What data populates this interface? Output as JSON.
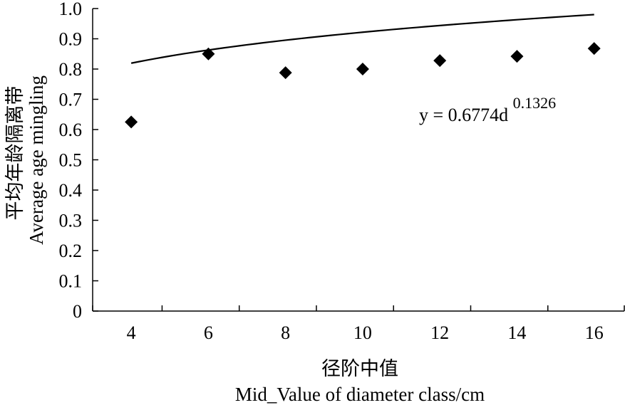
{
  "chart_data": {
    "type": "scatter",
    "x": [
      4.2,
      6.2,
      8.2,
      10.2,
      12.2,
      14.2,
      16.2
    ],
    "y": [
      0.625,
      0.85,
      0.788,
      0.8,
      0.828,
      0.842,
      0.868
    ],
    "xlim": [
      3.2,
      17
    ],
    "ylim": [
      0,
      1.0
    ],
    "x_ticks": [
      "4",
      "6",
      "8",
      "10",
      "12",
      "14",
      "16"
    ],
    "y_ticks": [
      "0",
      "0.1",
      "0.2",
      "0.3",
      "0.4",
      "0.5",
      "0.6",
      "0.7",
      "0.8",
      "0.9",
      "1.0"
    ],
    "xlabel_cn": "径阶中值",
    "xlabel_en": "Mid_Value of diameter class/cm",
    "ylabel_cn": "平均年龄隔离带",
    "ylabel_en": "Average age mingling",
    "trendline": {
      "type": "power",
      "a": 0.6774,
      "b": 0.1326,
      "equation_prefix": "y = 0.6774d",
      "equation_exponent": "0.1326"
    },
    "marker": "diamond",
    "grid": false,
    "legend": "none"
  }
}
